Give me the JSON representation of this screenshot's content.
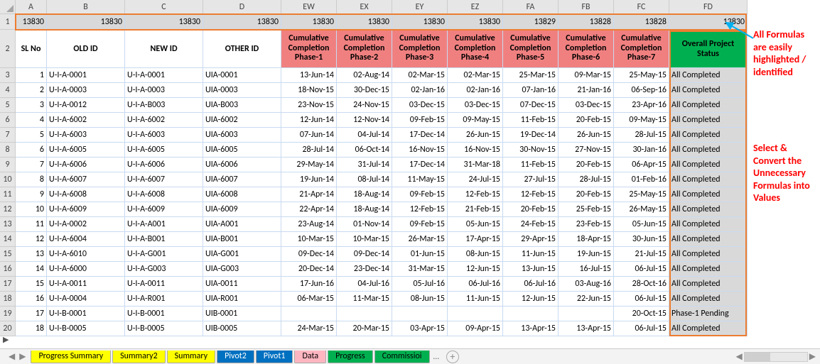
{
  "cols": {
    "width_rowhdr": 22,
    "letters": [
      "A",
      "B",
      "C",
      "D",
      "EW",
      "EX",
      "EY",
      "EZ",
      "FA",
      "FB",
      "FC",
      "FD"
    ],
    "widths": [
      44,
      110,
      110,
      110,
      78,
      78,
      78,
      78,
      78,
      78,
      78,
      110
    ]
  },
  "row1_label": "1",
  "row1_values": [
    "13830",
    "13830",
    "13830",
    "13830",
    "13830",
    "13830",
    "13830",
    "13830",
    "13829",
    "13828",
    "13828",
    "13830"
  ],
  "row2_label": "2",
  "headers": [
    "SL No",
    "OLD ID",
    "NEW ID",
    "OTHER ID",
    "Cumulative Completion Phase-1",
    "Cumulative Completion Phase-2",
    "Cumulative Completion Phase-3",
    "Cumulative Completion Phase-4",
    "Cumulative Completion Phase-5",
    "Cumulative Completion Phase-6",
    "Cumulative Completion Phase-7",
    "Overall Project Status"
  ],
  "row_labels": [
    "3",
    "4",
    "5",
    "6",
    "7",
    "8",
    "9",
    "10",
    "11",
    "12",
    "13",
    "14",
    "15",
    "16",
    "17",
    "18",
    "19",
    "20"
  ],
  "rows": [
    [
      "1",
      "U-I-A-0001",
      "U-I-A-0001",
      "UIA-0001",
      "13-Jun-14",
      "02-Aug-14",
      "02-Mar-15",
      "02-Mar-15",
      "25-Mar-15",
      "09-Mar-15",
      "25-May-15",
      "All Completed"
    ],
    [
      "2",
      "U-I-A-0003",
      "U-I-A-0003",
      "UIA-0003",
      "18-Nov-15",
      "30-Dec-15",
      "02-Jan-16",
      "02-Jan-16",
      "07-Jan-16",
      "21-Jan-16",
      "06-Sep-16",
      "All Completed"
    ],
    [
      "3",
      "U-I-A-0012",
      "U-I-A-B003",
      "UIA-B003",
      "23-Nov-15",
      "24-Nov-15",
      "03-Dec-15",
      "03-Dec-15",
      "07-Dec-15",
      "03-Dec-15",
      "23-Apr-16",
      "All Completed"
    ],
    [
      "4",
      "U-I-A-6002",
      "U-I-A-6002",
      "UIA-6002",
      "12-Jun-14",
      "12-Nov-14",
      "09-Feb-15",
      "09-May-15",
      "11-Feb-15",
      "20-Feb-15",
      "09-May-15",
      "All Completed"
    ],
    [
      "5",
      "U-I-A-6003",
      "U-I-A-6003",
      "UIA-6003",
      "07-Jun-14",
      "04-Jul-14",
      "17-Dec-14",
      "26-Jun-15",
      "19-Dec-14",
      "26-Jun-15",
      "28-Jul-15",
      "All Completed"
    ],
    [
      "6",
      "U-I-A-6005",
      "U-I-A-6005",
      "UIA-6005",
      "28-Jul-14",
      "06-Oct-14",
      "16-Nov-15",
      "16-Nov-15",
      "30-Nov-15",
      "27-Nov-15",
      "30-Jan-16",
      "All Completed"
    ],
    [
      "7",
      "U-I-A-6006",
      "U-I-A-6006",
      "UIA-6006",
      "29-May-14",
      "31-Jul-14",
      "17-Dec-14",
      "31-Mar-18",
      "11-Feb-15",
      "20-Feb-15",
      "06-Apr-15",
      "All Completed"
    ],
    [
      "8",
      "U-I-A-6007",
      "U-I-A-6007",
      "UIA-6007",
      "19-Jun-14",
      "08-Jul-14",
      "11-May-15",
      "24-Jul-15",
      "27-Jul-15",
      "28-Jul-15",
      "01-Feb-16",
      "All Completed"
    ],
    [
      "9",
      "U-I-A-6008",
      "U-I-A-6008",
      "UIA-6008",
      "21-Apr-14",
      "18-Aug-14",
      "09-Feb-15",
      "12-Feb-15",
      "12-Feb-15",
      "20-Feb-15",
      "25-May-15",
      "All Completed"
    ],
    [
      "10",
      "U-I-A-6009",
      "U-I-A-6009",
      "UIA-6009",
      "22-Apr-14",
      "18-Aug-14",
      "12-Feb-15",
      "21-Feb-15",
      "20-Feb-15",
      "25-Feb-15",
      "26-May-15",
      "All Completed"
    ],
    [
      "11",
      "U-I-A-0002",
      "U-I-A-A001",
      "UIA-A001",
      "23-Aug-14",
      "01-Nov-14",
      "09-Feb-15",
      "05-Jun-15",
      "24-Feb-15",
      "23-Feb-15",
      "05-Jun-15",
      "All Completed"
    ],
    [
      "12",
      "U-I-A-6004",
      "U-I-A-B001",
      "UIA-B001",
      "10-Mar-15",
      "10-Mar-15",
      "26-Mar-15",
      "17-Apr-15",
      "29-Apr-15",
      "18-Apr-15",
      "30-Jun-15",
      "All Completed"
    ],
    [
      "13",
      "U-I-A-6010",
      "U-I-A-G001",
      "UIA-G001",
      "09-Dec-14",
      "09-Dec-14",
      "01-Jun-15",
      "08-Jun-15",
      "11-Jun-15",
      "19-Jun-15",
      "21-Jul-15",
      "All Completed"
    ],
    [
      "14",
      "U-I-A-6000",
      "U-I-A-G003",
      "UIA-G003",
      "20-Dec-14",
      "23-Dec-14",
      "31-Mar-15",
      "12-Jun-15",
      "13-Jun-15",
      "16-Jul-15",
      "06-Jul-15",
      "All Completed"
    ],
    [
      "15",
      "U-I-A-0011",
      "U-I-A-0011",
      "UIA-0011",
      "17-Jun-16",
      "04-Jul-16",
      "05-Jul-16",
      "06-Jul-16",
      "06-Jul-16",
      "03-Aug-16",
      "28-Oct-16",
      "All Completed"
    ],
    [
      "16",
      "U-I-A-0004",
      "U-I-A-R001",
      "UIA-R001",
      "06-Mar-15",
      "11-Mar-15",
      "08-Jun-15",
      "11-Jun-15",
      "12-Jun-15",
      "22-Jun-15",
      "06-Jul-15",
      "All Completed"
    ],
    [
      "17",
      "U-I-B-0001",
      "U-I-B-0001",
      "UIB-0001",
      "",
      "",
      "",
      "",
      "",
      "",
      "20-Oct-15",
      "Phase-1 Pending"
    ],
    [
      "18",
      "U-I-B-0005",
      "U-I-B-0005",
      "UIB-0005",
      "24-Mar-15",
      "20-Mar-15",
      "03-Apr-15",
      "09-Apr-15",
      "13-Apr-15",
      "13-Apr-15",
      "06-Jul-15",
      "All Completed"
    ]
  ],
  "colors": {
    "counta_bg": "#d9d9d9",
    "phase_bg": "#f08080",
    "status_hdr_bg": "#00b050",
    "status_cell_bg": "#d9d9d9",
    "selection_border": "#ed7d31",
    "annotation_text": "#ff0000",
    "arrow_color": "#00b0f0",
    "grid_border": "#c9daf0"
  },
  "annotations": {
    "top_right": "All Formulas are easily highlighted / identified",
    "middle_right": "Select & Convert the Unnecessary Formulas into Values"
  },
  "tabs": {
    "items": [
      {
        "label": "Progress Summary",
        "bg": "#ffff00",
        "fg": "#000000"
      },
      {
        "label": "Summary2",
        "bg": "#ffff00",
        "fg": "#000000"
      },
      {
        "label": "Summary",
        "bg": "#ffff00",
        "fg": "#000000"
      },
      {
        "label": "Pivot2",
        "bg": "#0070c0",
        "fg": "#ffffff"
      },
      {
        "label": "Pivot1",
        "bg": "#0070c0",
        "fg": "#ffffff"
      },
      {
        "label": "Data",
        "bg": "#ffb6c1",
        "fg": "#000000"
      },
      {
        "label": "Progress",
        "bg": "#00b050",
        "fg": "#000000"
      },
      {
        "label": "Commissioi",
        "bg": "#00b050",
        "fg": "#000000"
      }
    ]
  },
  "layout": {
    "row1_height": 22,
    "row2_height": 54,
    "data_row_height": 21,
    "colhdr_height": 20
  }
}
